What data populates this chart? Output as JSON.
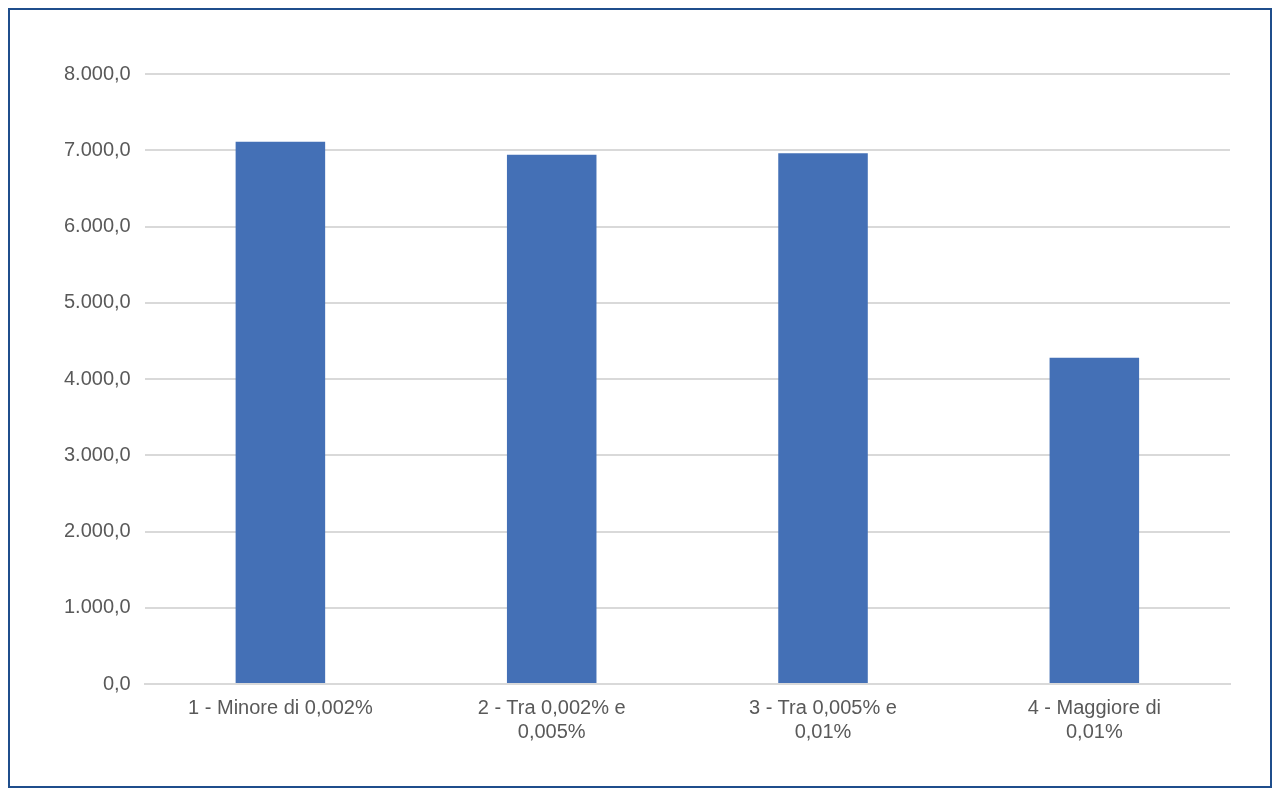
{
  "chart_data": {
    "type": "bar",
    "categories": [
      "1 - Minore di 0,002%",
      "2 - Tra 0,002% e 0,005%",
      "3 - Tra 0,005% e 0,01%",
      "4 - Maggiore di 0,01%"
    ],
    "values": [
      7110,
      6940,
      6960,
      4280
    ],
    "color": "#4470b6",
    "ylim": [
      0,
      8000
    ],
    "yticks": [
      {
        "value": 0,
        "label": "0,0"
      },
      {
        "value": 1000,
        "label": "1.000,0"
      },
      {
        "value": 2000,
        "label": "2.000,0"
      },
      {
        "value": 3000,
        "label": "3.000,0"
      },
      {
        "value": 4000,
        "label": "4.000,0"
      },
      {
        "value": 5000,
        "label": "5.000,0"
      },
      {
        "value": 6000,
        "label": "6.000,0"
      },
      {
        "value": 7000,
        "label": "7.000,0"
      },
      {
        "value": 8000,
        "label": "8.000,0"
      }
    ],
    "grid": "y"
  }
}
